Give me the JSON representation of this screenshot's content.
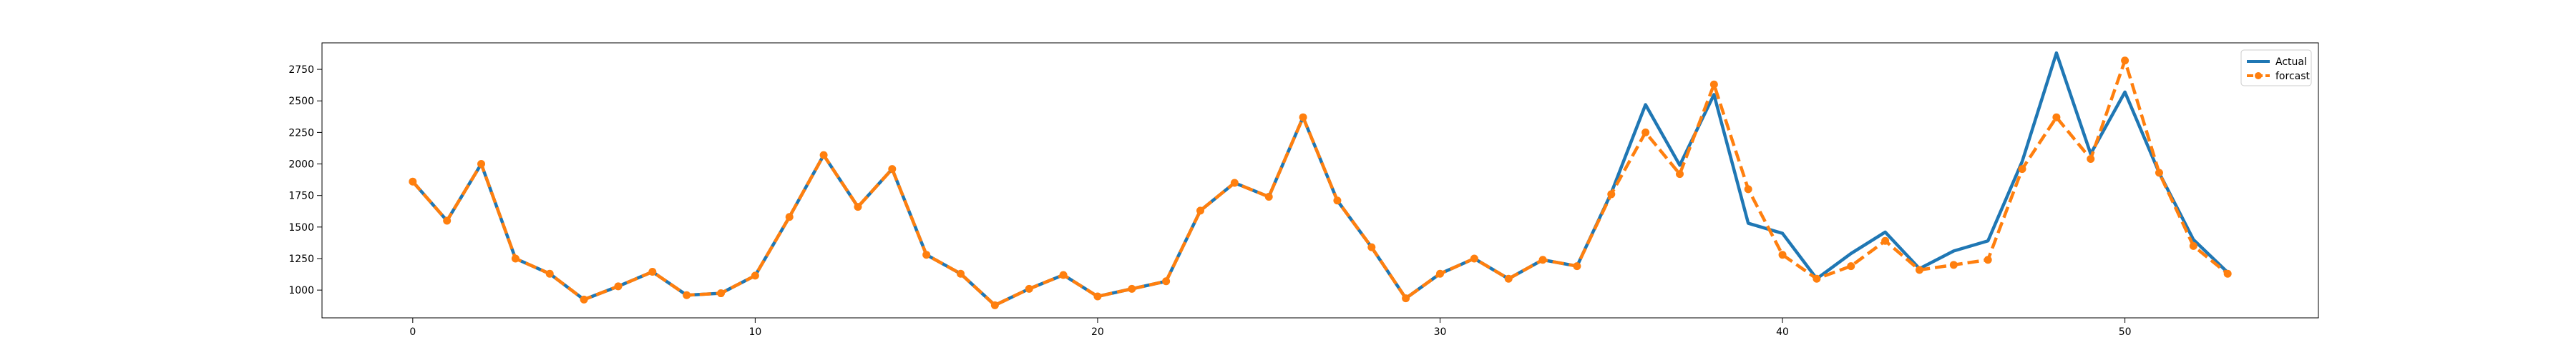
{
  "chart_data": {
    "type": "line",
    "title": "",
    "xlabel": "",
    "ylabel": "",
    "xlim": [
      -2.65,
      55.65
    ],
    "ylim": [
      780,
      2960
    ],
    "grid": false,
    "legend_placement": "top-right",
    "x_ticks": [
      0,
      10,
      20,
      30,
      40,
      50
    ],
    "y_ticks": [
      1000,
      1250,
      1500,
      1750,
      2000,
      2250,
      2500,
      2750
    ],
    "x": [
      0,
      1,
      2,
      3,
      4,
      5,
      6,
      7,
      8,
      9,
      10,
      11,
      12,
      13,
      14,
      15,
      16,
      17,
      18,
      19,
      20,
      21,
      22,
      23,
      24,
      25,
      26,
      27,
      28,
      29,
      30,
      31,
      32,
      33,
      34,
      35,
      36,
      37,
      38,
      39,
      40,
      41,
      42,
      43,
      44,
      45,
      46,
      47,
      48,
      49,
      50,
      51,
      52,
      53
    ],
    "series": [
      {
        "name": "Actual",
        "color": "#1f77b4",
        "style": "solid",
        "values": [
          1860,
          1550,
          2000,
          1250,
          1130,
          925,
          1030,
          1145,
          960,
          975,
          1115,
          1580,
          2070,
          1660,
          1960,
          1280,
          1130,
          880,
          1010,
          1120,
          950,
          1010,
          1070,
          1630,
          1850,
          1740,
          2370,
          1710,
          1340,
          935,
          1130,
          1250,
          1090,
          1240,
          1190,
          1770,
          2470,
          1990,
          2550,
          1530,
          1450,
          1090,
          1290,
          1460,
          1170,
          1310,
          1390,
          2020,
          2880,
          2080,
          2570,
          1930,
          1400,
          1140
        ]
      },
      {
        "name": "forcast",
        "color": "#ff7f0e",
        "style": "dashed",
        "values": [
          1860,
          1550,
          2000,
          1250,
          1130,
          925,
          1030,
          1145,
          960,
          975,
          1115,
          1580,
          2070,
          1660,
          1960,
          1280,
          1130,
          880,
          1010,
          1120,
          950,
          1010,
          1070,
          1630,
          1850,
          1740,
          2370,
          1710,
          1340,
          935,
          1130,
          1250,
          1090,
          1240,
          1190,
          1760,
          2250,
          1920,
          2630,
          1800,
          1280,
          1090,
          1190,
          1390,
          1160,
          1200,
          1240,
          1960,
          2370,
          2040,
          2820,
          1930,
          1350,
          1130
        ]
      }
    ]
  }
}
